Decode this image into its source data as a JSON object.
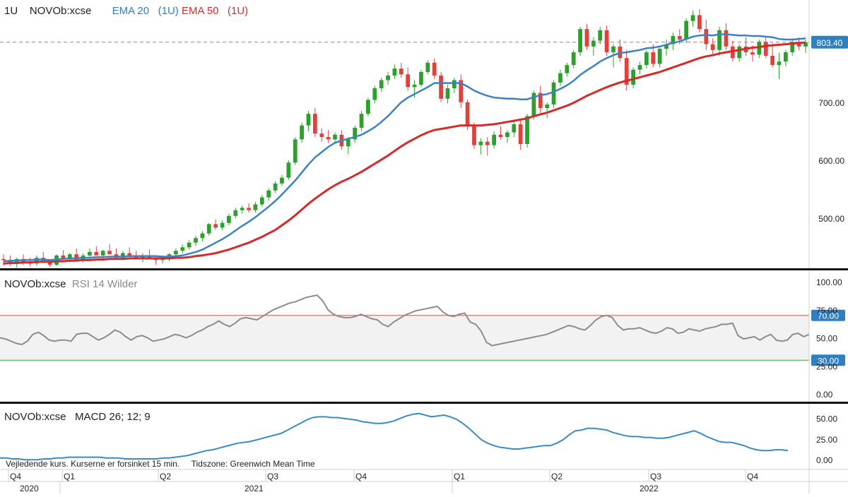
{
  "main_panel": {
    "timeframe": "1U",
    "symbol": "NOVOb:xcse",
    "ema20_label": "EMA 20",
    "ema20_tf": "(1U)",
    "ema50_label": "EMA 50",
    "ema50_tf": "(1U)",
    "last_price_label": "803.40"
  },
  "rsi_panel": {
    "symbol": "NOVOb:xcse",
    "indicator": "RSI 14 Wilder",
    "upper_badge": "70.00",
    "lower_badge": "30.00"
  },
  "macd_panel": {
    "symbol": "NOVOb:xcse",
    "indicator": "MACD 26; 12; 9"
  },
  "footer": {
    "delay_note": "Vejledende kurs. Kurserne er forsinket 15 min.",
    "timezone_note": "Tidszone: Greenwich Mean Time"
  },
  "colors": {
    "up": "#2ca02c",
    "down": "#e0413c",
    "ema20": "#3b82c4",
    "ema50": "#d42a2a",
    "rsi_line": "#8c8c8c",
    "macd_line": "#3a8cc0",
    "last_price_line": "#e06060",
    "badge": "#2f7fc1"
  },
  "chart_data": [
    {
      "type": "candlestick",
      "price_axis_ticks": [
        500,
        600,
        700
      ],
      "ylim": [
        420,
        870
      ],
      "last_price": 803.4,
      "series": [
        {
          "name": "EMA 20 (1U)"
        },
        {
          "name": "EMA 50 (1U)"
        }
      ],
      "x_ticks_quarters": [
        "Q4",
        "Q1",
        "Q2",
        "Q3",
        "Q4",
        "Q1",
        "Q2",
        "Q3",
        "Q4"
      ],
      "x_ticks_years": [
        "2020",
        "2021",
        "2022"
      ],
      "candles": [
        [
          430,
          438,
          418,
          428
        ],
        [
          428,
          436,
          418,
          422
        ],
        [
          422,
          432,
          415,
          430
        ],
        [
          430,
          438,
          420,
          424
        ],
        [
          424,
          432,
          418,
          422
        ],
        [
          422,
          436,
          418,
          432
        ],
        [
          432,
          442,
          425,
          426
        ],
        [
          426,
          430,
          416,
          420
        ],
        [
          420,
          438,
          418,
          436
        ],
        [
          436,
          445,
          428,
          430
        ],
        [
          430,
          440,
          425,
          438
        ],
        [
          438,
          448,
          432,
          428
        ],
        [
          428,
          440,
          424,
          436
        ],
        [
          436,
          448,
          432,
          442
        ],
        [
          442,
          452,
          438,
          436
        ],
        [
          436,
          446,
          430,
          444
        ],
        [
          444,
          455,
          440,
          438
        ],
        [
          438,
          448,
          430,
          432
        ],
        [
          432,
          444,
          428,
          440
        ],
        [
          440,
          450,
          434,
          436
        ],
        [
          436,
          444,
          430,
          432
        ],
        [
          432,
          440,
          424,
          436
        ],
        [
          436,
          446,
          430,
          430
        ],
        [
          430,
          436,
          420,
          428
        ],
        [
          428,
          436,
          422,
          432
        ],
        [
          432,
          440,
          426,
          438
        ],
        [
          438,
          448,
          434,
          444
        ],
        [
          444,
          455,
          440,
          450
        ],
        [
          450,
          462,
          446,
          458
        ],
        [
          458,
          470,
          452,
          466
        ],
        [
          466,
          478,
          460,
          474
        ],
        [
          474,
          492,
          470,
          490
        ],
        [
          490,
          498,
          480,
          484
        ],
        [
          484,
          496,
          480,
          492
        ],
        [
          492,
          508,
          488,
          504
        ],
        [
          504,
          518,
          500,
          514
        ],
        [
          514,
          522,
          508,
          518
        ],
        [
          518,
          526,
          510,
          514
        ],
        [
          514,
          528,
          510,
          524
        ],
        [
          524,
          540,
          520,
          536
        ],
        [
          536,
          552,
          530,
          548
        ],
        [
          548,
          564,
          544,
          560
        ],
        [
          560,
          575,
          556,
          570
        ],
        [
          570,
          600,
          566,
          596
        ],
        [
          596,
          640,
          592,
          636
        ],
        [
          636,
          665,
          630,
          660
        ],
        [
          660,
          685,
          650,
          680
        ],
        [
          680,
          690,
          640,
          646
        ],
        [
          646,
          655,
          632,
          640
        ],
        [
          640,
          652,
          630,
          636
        ],
        [
          636,
          648,
          630,
          644
        ],
        [
          644,
          652,
          618,
          624
        ],
        [
          624,
          640,
          610,
          636
        ],
        [
          636,
          660,
          630,
          656
        ],
        [
          656,
          685,
          650,
          680
        ],
        [
          680,
          708,
          676,
          704
        ],
        [
          704,
          728,
          698,
          724
        ],
        [
          724,
          742,
          718,
          738
        ],
        [
          738,
          752,
          730,
          746
        ],
        [
          746,
          765,
          740,
          758
        ],
        [
          758,
          768,
          742,
          748
        ],
        [
          748,
          760,
          720,
          726
        ],
        [
          726,
          738,
          708,
          730
        ],
        [
          730,
          756,
          726,
          752
        ],
        [
          752,
          772,
          748,
          768
        ],
        [
          768,
          775,
          740,
          746
        ],
        [
          746,
          752,
          700,
          706
        ],
        [
          706,
          730,
          698,
          724
        ],
        [
          724,
          742,
          716,
          738
        ],
        [
          738,
          748,
          690,
          700
        ],
        [
          700,
          705,
          652,
          660
        ],
        [
          660,
          665,
          620,
          626
        ],
        [
          626,
          638,
          610,
          632
        ],
        [
          632,
          640,
          608,
          626
        ],
        [
          626,
          650,
          620,
          644
        ],
        [
          644,
          658,
          636,
          640
        ],
        [
          640,
          652,
          630,
          648
        ],
        [
          648,
          670,
          640,
          662
        ],
        [
          662,
          672,
          618,
          628
        ],
        [
          628,
          680,
          622,
          676
        ],
        [
          676,
          720,
          670,
          716
        ],
        [
          716,
          728,
          680,
          690
        ],
        [
          690,
          700,
          672,
          696
        ],
        [
          696,
          738,
          690,
          734
        ],
        [
          734,
          756,
          728,
          750
        ],
        [
          750,
          768,
          744,
          764
        ],
        [
          764,
          790,
          758,
          786
        ],
        [
          786,
          830,
          780,
          826
        ],
        [
          826,
          835,
          790,
          796
        ],
        [
          796,
          812,
          780,
          806
        ],
        [
          806,
          830,
          800,
          824
        ],
        [
          824,
          832,
          780,
          786
        ],
        [
          786,
          800,
          760,
          796
        ],
        [
          796,
          808,
          770,
          776
        ],
        [
          776,
          790,
          720,
          730
        ],
        [
          730,
          760,
          724,
          756
        ],
        [
          756,
          770,
          748,
          764
        ],
        [
          764,
          790,
          758,
          786
        ],
        [
          786,
          800,
          760,
          766
        ],
        [
          766,
          796,
          760,
          792
        ],
        [
          792,
          808,
          780,
          800
        ],
        [
          800,
          820,
          790,
          814
        ],
        [
          814,
          826,
          800,
          808
        ],
        [
          808,
          845,
          802,
          840
        ],
        [
          840,
          858,
          830,
          850
        ],
        [
          850,
          860,
          820,
          826
        ],
        [
          826,
          842,
          790,
          800
        ],
        [
          800,
          810,
          780,
          790
        ],
        [
          790,
          830,
          780,
          824
        ],
        [
          824,
          836,
          790,
          796
        ],
        [
          796,
          806,
          770,
          776
        ],
        [
          776,
          800,
          770,
          796
        ],
        [
          796,
          812,
          780,
          786
        ],
        [
          786,
          798,
          770,
          782
        ],
        [
          782,
          808,
          776,
          804
        ],
        [
          804,
          812,
          776,
          780
        ],
        [
          780,
          802,
          760,
          764
        ],
        [
          764,
          785,
          740,
          770
        ],
        [
          770,
          790,
          762,
          786
        ],
        [
          786,
          810,
          780,
          804
        ],
        [
          804,
          812,
          790,
          796
        ],
        [
          796,
          808,
          785,
          803
        ]
      ],
      "ema20": [
        426,
        427,
        427,
        428,
        428,
        429,
        429,
        428,
        429,
        430,
        431,
        431,
        432,
        432,
        433,
        433,
        434,
        434,
        434,
        435,
        435,
        435,
        435,
        435,
        434,
        434,
        435,
        436,
        439,
        442,
        446,
        452,
        458,
        464,
        471,
        479,
        487,
        494,
        502,
        511,
        520,
        530,
        541,
        553,
        565,
        579,
        593,
        605,
        614,
        623,
        630,
        634,
        637,
        640,
        644,
        650,
        657,
        666,
        676,
        688,
        700,
        708,
        714,
        720,
        726,
        733,
        733,
        733,
        733,
        733,
        727,
        720,
        715,
        711,
        708,
        707,
        706,
        706,
        705,
        705,
        709,
        712,
        714,
        718,
        723,
        729,
        737,
        747,
        755,
        762,
        770,
        776,
        781,
        785,
        786,
        788,
        790,
        793,
        794,
        796,
        799,
        802,
        805,
        809,
        813,
        815,
        816,
        815,
        817,
        817,
        816,
        815,
        815,
        814,
        814,
        813,
        812,
        809,
        808,
        808,
        809,
        810
      ],
      "ema50": [
        422,
        423,
        423,
        424,
        424,
        425,
        425,
        425,
        426,
        426,
        427,
        427,
        428,
        428,
        429,
        429,
        430,
        430,
        430,
        431,
        431,
        431,
        431,
        431,
        431,
        431,
        432,
        432,
        433,
        435,
        436,
        438,
        440,
        443,
        446,
        450,
        454,
        458,
        463,
        468,
        474,
        480,
        488,
        496,
        505,
        515,
        525,
        534,
        542,
        550,
        557,
        563,
        568,
        574,
        580,
        587,
        594,
        601,
        608,
        616,
        624,
        631,
        637,
        643,
        648,
        652,
        654,
        656,
        658,
        660,
        660,
        660,
        660,
        661,
        662,
        664,
        666,
        668,
        670,
        672,
        676,
        679,
        682,
        686,
        690,
        694,
        699,
        705,
        711,
        716,
        721,
        726,
        730,
        734,
        737,
        740,
        743,
        746,
        749,
        752,
        756,
        760,
        764,
        768,
        772,
        776,
        779,
        781,
        784,
        786,
        788,
        790,
        792,
        794,
        795,
        797,
        798,
        799,
        800,
        801,
        802,
        803
      ]
    },
    {
      "type": "line",
      "ylim": [
        0,
        100
      ],
      "y_ticks": [
        0,
        25,
        50,
        75,
        100
      ],
      "reference_levels": [
        30,
        70
      ],
      "values": [
        50,
        49,
        47,
        45,
        44,
        47,
        53,
        55,
        52,
        48,
        47,
        48,
        48,
        47,
        53,
        54,
        54,
        51,
        48,
        50,
        53,
        57,
        55,
        51,
        48,
        51,
        52,
        50,
        47,
        48,
        49,
        51,
        53,
        52,
        50,
        52,
        55,
        57,
        60,
        62,
        65,
        62,
        60,
        63,
        67,
        68,
        67,
        66,
        69,
        72,
        75,
        77,
        79,
        81,
        82,
        84,
        86,
        87,
        88,
        83,
        75,
        71,
        69,
        68,
        68,
        69,
        71,
        69,
        67,
        66,
        62,
        60,
        64,
        67,
        70,
        72,
        74,
        75,
        76,
        77,
        78,
        73,
        70,
        69,
        71,
        72,
        64,
        62,
        56,
        46,
        43,
        44,
        45,
        46,
        47,
        48,
        49,
        50,
        51,
        52,
        53,
        55,
        57,
        59,
        61,
        60,
        58,
        57,
        61,
        66,
        69,
        70,
        68,
        61,
        57,
        58,
        58,
        59,
        57,
        55,
        54,
        56,
        59,
        58,
        54,
        55,
        58,
        57,
        56,
        58,
        59,
        60,
        62,
        62,
        63,
        52,
        49,
        50,
        51,
        48,
        51,
        53,
        48,
        47,
        48,
        53,
        54,
        51,
        53
      ]
    },
    {
      "type": "line",
      "ylim": [
        -5,
        60
      ],
      "y_ticks": [
        0,
        25,
        50
      ],
      "values": [
        2,
        2,
        1,
        1,
        0,
        0,
        0,
        1,
        1,
        2,
        2,
        3,
        3,
        3,
        3,
        3,
        3,
        2,
        2,
        2,
        1,
        1,
        1,
        1,
        1,
        1,
        2,
        2,
        3,
        4,
        5,
        7,
        9,
        11,
        12,
        14,
        16,
        18,
        20,
        21,
        22,
        24,
        26,
        28,
        30,
        32,
        36,
        40,
        44,
        48,
        51,
        52,
        52,
        51,
        51,
        50,
        49,
        48,
        46,
        45,
        44,
        44,
        45,
        47,
        50,
        53,
        55,
        56,
        54,
        52,
        53,
        54,
        52,
        49,
        44,
        38,
        31,
        24,
        20,
        17,
        15,
        14,
        13,
        13,
        14,
        15,
        16,
        17,
        17,
        20,
        24,
        30,
        35,
        36,
        38,
        38,
        37,
        36,
        33,
        31,
        29,
        28,
        28,
        27,
        27,
        26,
        26,
        27,
        29,
        31,
        33,
        35,
        32,
        28,
        25,
        22,
        21,
        21,
        19,
        17,
        14,
        12,
        11,
        11,
        12,
        12,
        11
      ]
    }
  ]
}
